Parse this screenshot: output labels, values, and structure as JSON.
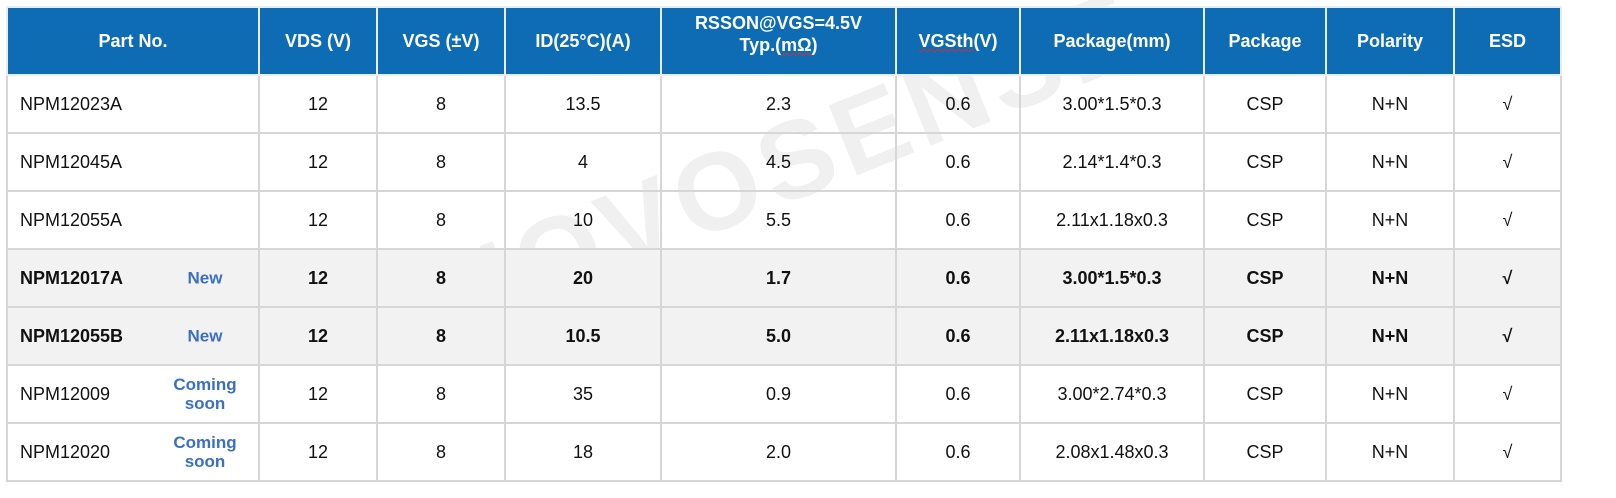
{
  "watermark": "NOVOSENSE",
  "header": {
    "part": "Part No.",
    "vds": "VDS (V)",
    "vgs": "VGS (±V)",
    "id": "ID(25°C)(A)",
    "rds1": "RSSON@VGS=4.5V",
    "rds2a": "Typ.(",
    "rds2b": "mΩ",
    "rds2c": ")",
    "vgsth": "VGSth",
    "vgsth_unit": "(V)",
    "pkgmm": "Package(mm)",
    "pkg": "Package",
    "polarity": "Polarity",
    "esd": "ESD"
  },
  "rows": [
    {
      "part": "NPM12023A",
      "tag": "",
      "vds": "12",
      "vgs": "8",
      "id": "13.5",
      "rds": "2.3",
      "vgsth": "0.6",
      "pkgmm": "3.00*1.5*0.3",
      "pkg": "CSP",
      "polarity": "N+N",
      "esd": "√",
      "bold": false
    },
    {
      "part": "NPM12045A",
      "tag": "",
      "vds": "12",
      "vgs": "8",
      "id": "4",
      "rds": "4.5",
      "vgsth": "0.6",
      "pkgmm": "2.14*1.4*0.3",
      "pkg": "CSP",
      "polarity": "N+N",
      "esd": "√",
      "bold": false
    },
    {
      "part": "NPM12055A",
      "tag": "",
      "vds": "12",
      "vgs": "8",
      "id": "10",
      "rds": "5.5",
      "vgsth": "0.6",
      "pkgmm": "2.11x1.18x0.3",
      "pkg": "CSP",
      "polarity": "N+N",
      "esd": "√",
      "bold": false
    },
    {
      "part": "NPM12017A",
      "tag": "New",
      "vds": "12",
      "vgs": "8",
      "id": "20",
      "rds": "1.7",
      "vgsth": "0.6",
      "pkgmm": "3.00*1.5*0.3",
      "pkg": "CSP",
      "polarity": "N+N",
      "esd": "√",
      "bold": true
    },
    {
      "part": "NPM12055B",
      "tag": "New",
      "vds": "12",
      "vgs": "8",
      "id": "10.5",
      "rds": "5.0",
      "vgsth": "0.6",
      "pkgmm": "2.11x1.18x0.3",
      "pkg": "CSP",
      "polarity": "N+N",
      "esd": "√",
      "bold": true
    },
    {
      "part": "NPM12009",
      "tag": "Coming soon",
      "vds": "12",
      "vgs": "8",
      "id": "35",
      "rds": "0.9",
      "vgsth": "0.6",
      "pkgmm": "3.00*2.74*0.3",
      "pkg": "CSP",
      "polarity": "N+N",
      "esd": "√",
      "bold": false
    },
    {
      "part": "NPM12020",
      "tag": "Coming soon",
      "vds": "12",
      "vgs": "8",
      "id": "18",
      "rds": "2.0",
      "vgsth": "0.6",
      "pkgmm": "2.08x1.48x0.3",
      "pkg": "CSP",
      "polarity": "N+N",
      "esd": "√",
      "bold": false
    }
  ],
  "colors": {
    "header_bg": "#0e6cb5",
    "tag_text": "#3a6fc4",
    "highlight_row_bg": "#f2f2f2"
  }
}
